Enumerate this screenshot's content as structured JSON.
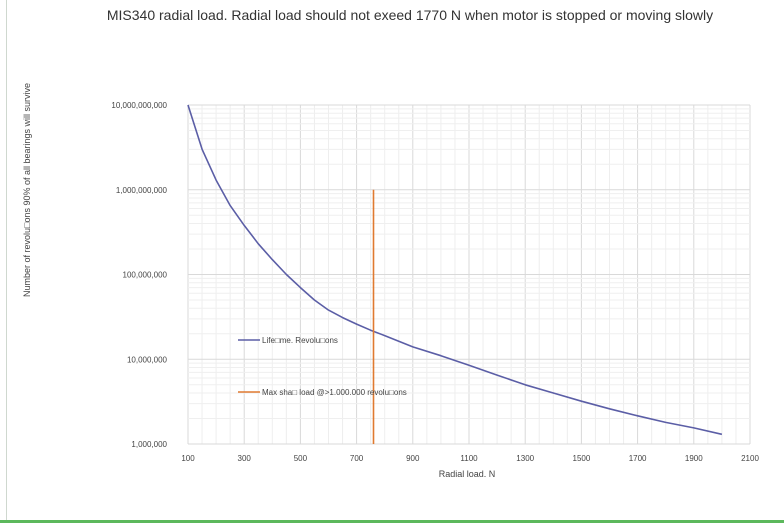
{
  "chart_data": {
    "type": "line",
    "title": "MIS340 radial load. Radial load should not exeed 1770 N when motor is stopped or moving slowly",
    "xlabel": "Radial load. N",
    "ylabel": "Number of revolu□ons 90% of all bearings will survive",
    "x_scale": "linear",
    "y_scale": "log",
    "xlim": [
      100,
      2100
    ],
    "ylim": [
      1000000,
      10000000000
    ],
    "x_ticks": [
      100,
      300,
      500,
      700,
      900,
      1100,
      1300,
      1500,
      1700,
      1900,
      2100
    ],
    "x_tick_labels": [
      "100",
      "300",
      "500",
      "700",
      "900",
      "1100",
      "1300",
      "1500",
      "1700",
      "1900",
      "2100"
    ],
    "y_ticks": [
      1000000,
      10000000,
      100000000,
      1000000000,
      10000000000
    ],
    "y_tick_labels": [
      "1,000,000",
      "10,000,000",
      "100,000,000",
      "1,000,000,000",
      "10,000,000,000"
    ],
    "grid": true,
    "legend_position": "inside-left",
    "series": [
      {
        "name": "Life□me. Revolu□ons",
        "color": "#5b5ea6",
        "x": [
          100,
          150,
          200,
          250,
          300,
          350,
          400,
          450,
          500,
          550,
          600,
          650,
          700,
          750,
          800,
          900,
          1000,
          1100,
          1200,
          1300,
          1400,
          1500,
          1600,
          1700,
          1800,
          1900,
          2000
        ],
        "y": [
          10000000000,
          3000000000,
          1300000000,
          650000000,
          380000000,
          230000000,
          150000000,
          100000000,
          70000000,
          50000000,
          38000000,
          31000000,
          26000000,
          22000000,
          19000000,
          14000000,
          11000000,
          8500000,
          6500000,
          5000000,
          4000000,
          3200000,
          2600000,
          2150000,
          1800000,
          1550000,
          1300000
        ]
      },
      {
        "name": "Max sha□ load @>1.000.000 revolu□ons",
        "color": "#e07a30",
        "x": [
          760,
          760
        ],
        "y": [
          1000000,
          1000000000
        ]
      }
    ]
  }
}
